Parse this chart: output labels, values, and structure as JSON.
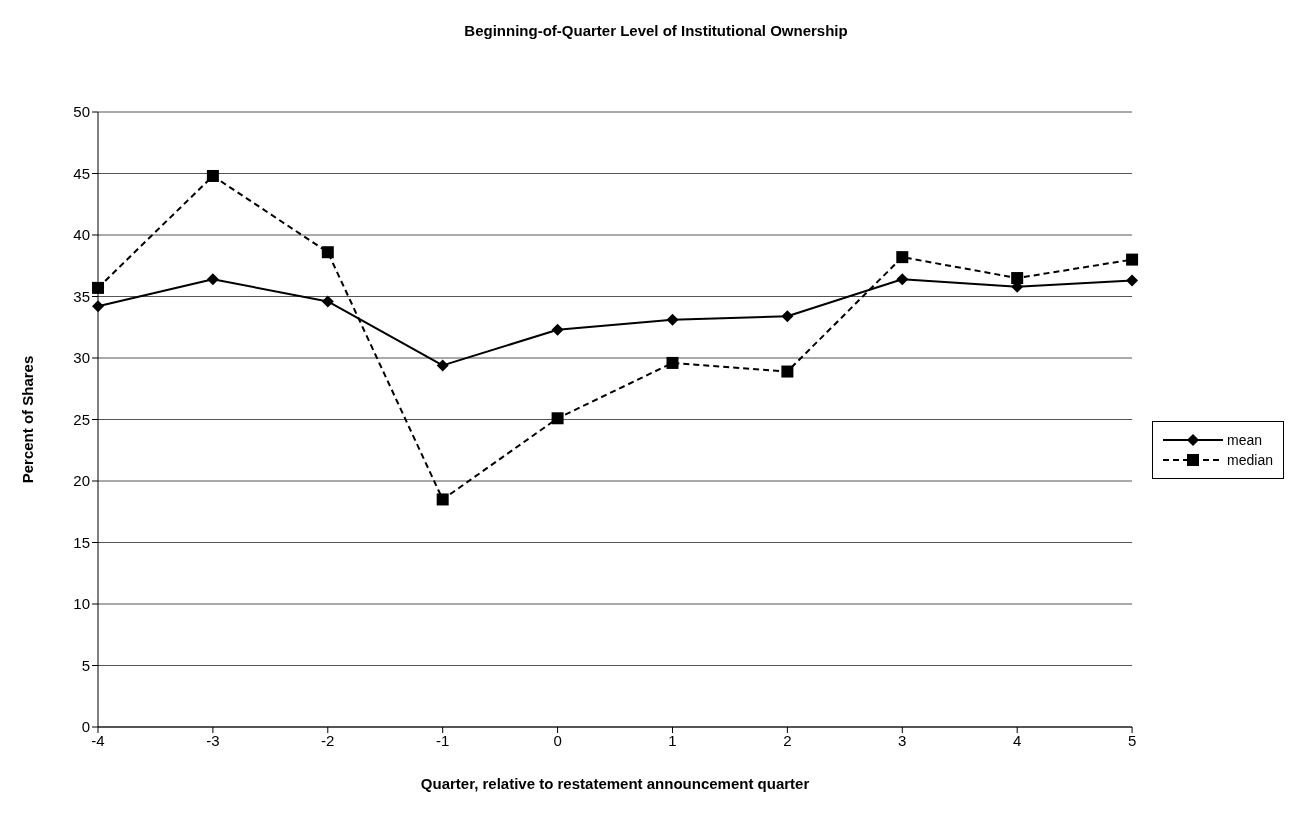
{
  "chart_data": {
    "type": "line",
    "title": "Beginning-of-Quarter Level of Institutional Ownership",
    "xlabel": "Quarter, relative to restatement announcement quarter",
    "ylabel": "Percent of Shares",
    "categories": [
      "-4",
      "-3",
      "-2",
      "-1",
      "0",
      "1",
      "2",
      "3",
      "4",
      "5"
    ],
    "series": [
      {
        "name": "mean",
        "color": "#000000",
        "marker": "diamond",
        "line_style": "solid",
        "values": [
          34.2,
          36.4,
          34.6,
          29.4,
          32.3,
          33.1,
          33.4,
          36.4,
          35.8,
          36.3
        ]
      },
      {
        "name": "median",
        "color": "#000000",
        "marker": "square",
        "line_style": "dashed",
        "values": [
          35.7,
          44.8,
          38.6,
          18.5,
          25.1,
          29.6,
          28.9,
          38.2,
          36.5,
          38.0
        ]
      }
    ],
    "ylim": [
      0,
      50
    ],
    "yticks": [
      0,
      5,
      10,
      15,
      20,
      25,
      30,
      35,
      40,
      45,
      50
    ],
    "grid": "y",
    "legend": "right"
  }
}
